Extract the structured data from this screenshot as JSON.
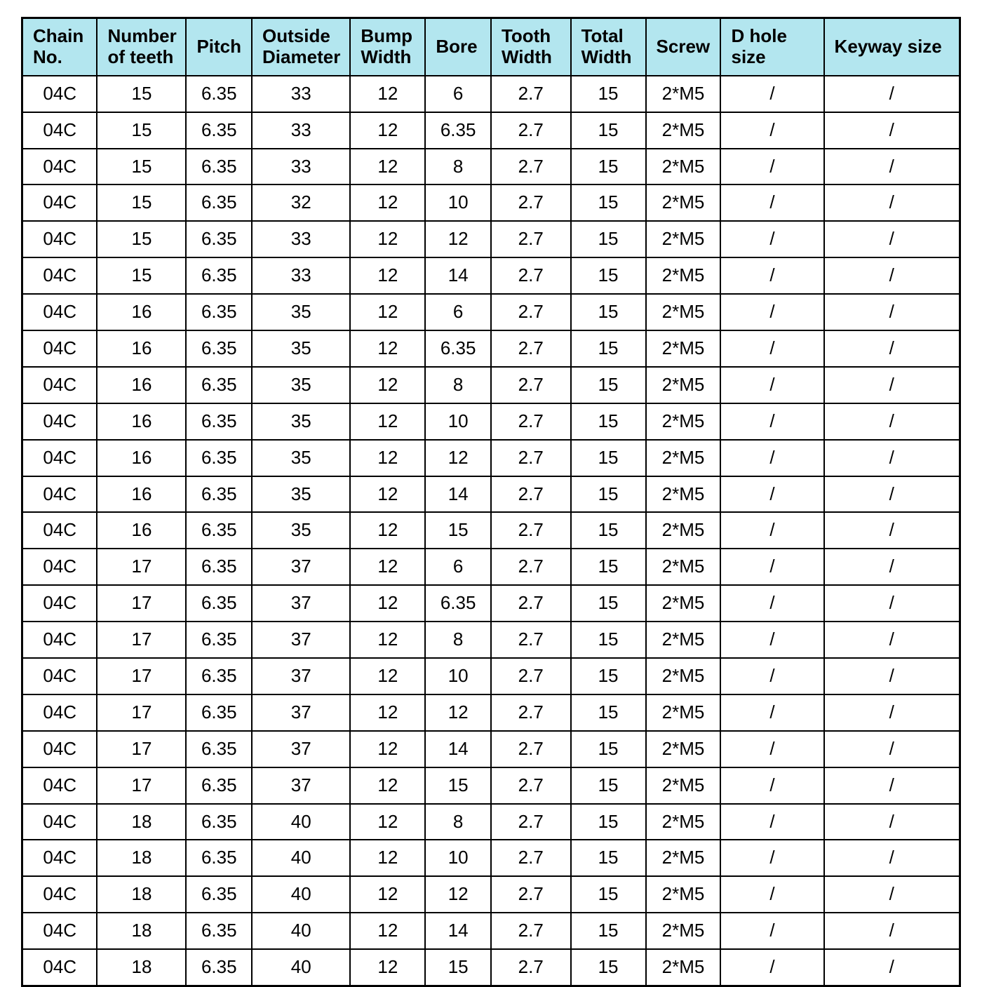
{
  "table": {
    "type": "table",
    "header_bg": "#b3e6ef",
    "border_color": "#000000",
    "text_color": "#000000",
    "font_family": "Arial",
    "header_fontsize_pt": 20,
    "cell_fontsize_pt": 20,
    "columns": [
      {
        "label": "Chain No.",
        "width_pct": 8.0
      },
      {
        "label": "Number of teeth",
        "width_pct": 9.5
      },
      {
        "label": "Pitch",
        "width_pct": 7.0
      },
      {
        "label": "Outside Diameter",
        "width_pct": 10.5
      },
      {
        "label": "Bump Width",
        "width_pct": 8.0
      },
      {
        "label": "Bore",
        "width_pct": 7.0
      },
      {
        "label": "Tooth Width",
        "width_pct": 8.5
      },
      {
        "label": "Total Width",
        "width_pct": 8.0
      },
      {
        "label": "Screw",
        "width_pct": 8.0
      },
      {
        "label": "D hole size",
        "width_pct": 11.0
      },
      {
        "label": "Keyway size",
        "width_pct": 14.5
      }
    ],
    "rows": [
      [
        "04C",
        "15",
        "6.35",
        "33",
        "12",
        "6",
        "2.7",
        "15",
        "2*M5",
        "/",
        "/"
      ],
      [
        "04C",
        "15",
        "6.35",
        "33",
        "12",
        "6.35",
        "2.7",
        "15",
        "2*M5",
        "/",
        "/"
      ],
      [
        "04C",
        "15",
        "6.35",
        "33",
        "12",
        "8",
        "2.7",
        "15",
        "2*M5",
        "/",
        "/"
      ],
      [
        "04C",
        "15",
        "6.35",
        "32",
        "12",
        "10",
        "2.7",
        "15",
        "2*M5",
        "/",
        "/"
      ],
      [
        "04C",
        "15",
        "6.35",
        "33",
        "12",
        "12",
        "2.7",
        "15",
        "2*M5",
        "/",
        "/"
      ],
      [
        "04C",
        "15",
        "6.35",
        "33",
        "12",
        "14",
        "2.7",
        "15",
        "2*M5",
        "/",
        "/"
      ],
      [
        "04C",
        "16",
        "6.35",
        "35",
        "12",
        "6",
        "2.7",
        "15",
        "2*M5",
        "/",
        "/"
      ],
      [
        "04C",
        "16",
        "6.35",
        "35",
        "12",
        "6.35",
        "2.7",
        "15",
        "2*M5",
        "/",
        "/"
      ],
      [
        "04C",
        "16",
        "6.35",
        "35",
        "12",
        "8",
        "2.7",
        "15",
        "2*M5",
        "/",
        "/"
      ],
      [
        "04C",
        "16",
        "6.35",
        "35",
        "12",
        "10",
        "2.7",
        "15",
        "2*M5",
        "/",
        "/"
      ],
      [
        "04C",
        "16",
        "6.35",
        "35",
        "12",
        "12",
        "2.7",
        "15",
        "2*M5",
        "/",
        "/"
      ],
      [
        "04C",
        "16",
        "6.35",
        "35",
        "12",
        "14",
        "2.7",
        "15",
        "2*M5",
        "/",
        "/"
      ],
      [
        "04C",
        "16",
        "6.35",
        "35",
        "12",
        "15",
        "2.7",
        "15",
        "2*M5",
        "/",
        "/"
      ],
      [
        "04C",
        "17",
        "6.35",
        "37",
        "12",
        "6",
        "2.7",
        "15",
        "2*M5",
        "/",
        "/"
      ],
      [
        "04C",
        "17",
        "6.35",
        "37",
        "12",
        "6.35",
        "2.7",
        "15",
        "2*M5",
        "/",
        "/"
      ],
      [
        "04C",
        "17",
        "6.35",
        "37",
        "12",
        "8",
        "2.7",
        "15",
        "2*M5",
        "/",
        "/"
      ],
      [
        "04C",
        "17",
        "6.35",
        "37",
        "12",
        "10",
        "2.7",
        "15",
        "2*M5",
        "/",
        "/"
      ],
      [
        "04C",
        "17",
        "6.35",
        "37",
        "12",
        "12",
        "2.7",
        "15",
        "2*M5",
        "/",
        "/"
      ],
      [
        "04C",
        "17",
        "6.35",
        "37",
        "12",
        "14",
        "2.7",
        "15",
        "2*M5",
        "/",
        "/"
      ],
      [
        "04C",
        "17",
        "6.35",
        "37",
        "12",
        "15",
        "2.7",
        "15",
        "2*M5",
        "/",
        "/"
      ],
      [
        "04C",
        "18",
        "6.35",
        "40",
        "12",
        "8",
        "2.7",
        "15",
        "2*M5",
        "/",
        "/"
      ],
      [
        "04C",
        "18",
        "6.35",
        "40",
        "12",
        "10",
        "2.7",
        "15",
        "2*M5",
        "/",
        "/"
      ],
      [
        "04C",
        "18",
        "6.35",
        "40",
        "12",
        "12",
        "2.7",
        "15",
        "2*M5",
        "/",
        "/"
      ],
      [
        "04C",
        "18",
        "6.35",
        "40",
        "12",
        "14",
        "2.7",
        "15",
        "2*M5",
        "/",
        "/"
      ],
      [
        "04C",
        "18",
        "6.35",
        "40",
        "12",
        "15",
        "2.7",
        "15",
        "2*M5",
        "/",
        "/"
      ]
    ]
  }
}
